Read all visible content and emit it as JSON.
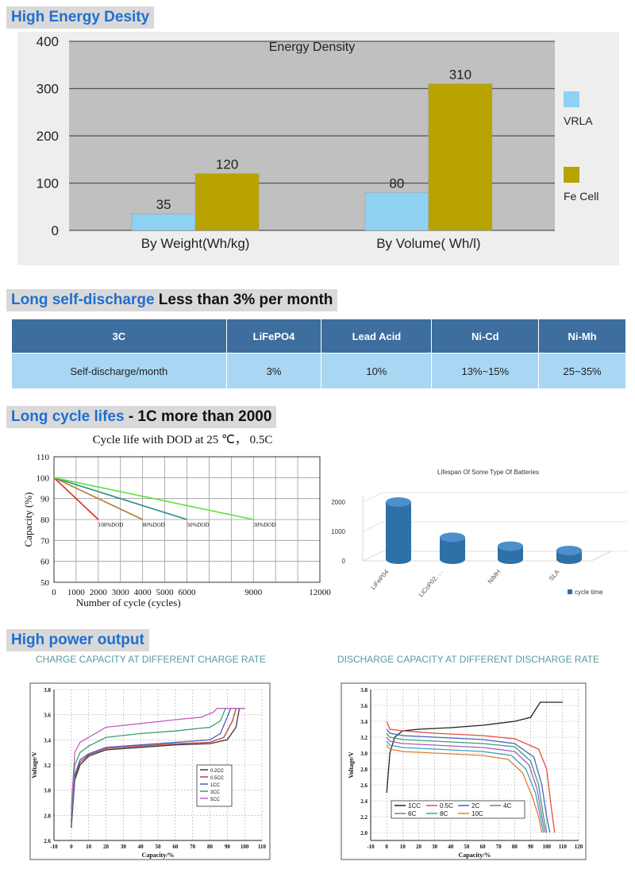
{
  "sections": {
    "energy": {
      "title": "High Energy Desity"
    },
    "self_discharge": {
      "title_colored": "Long self-discharge",
      "title_rest": " Less than 3% per month"
    },
    "cycle": {
      "title_colored": "Long cycle lifes",
      "title_rest": " - 1C more than 2000"
    },
    "power": {
      "title": "High power output"
    }
  },
  "colors": {
    "header_blue": "#1f6fd0",
    "vrla": "#8fd1f3",
    "fe": "#b8a300",
    "table_header": "#3d6e9e",
    "table_row": "#a8d6f3"
  },
  "table": {
    "headers": [
      "3C",
      "LiFePO4",
      "Lead Acid",
      "Ni-Cd",
      "Ni-Mh"
    ],
    "row": [
      "Self-discharge/month",
      "3%",
      "10%",
      "13%~15%",
      "25~35%"
    ]
  },
  "chart_data": [
    {
      "type": "bar",
      "title": "Energy Density",
      "categories": [
        "By Weight(Wh/kg)",
        "By Volume( Wh/l)"
      ],
      "series": [
        {
          "name": "VRLA",
          "values": [
            35,
            80
          ]
        },
        {
          "name": "Fe Cell",
          "values": [
            120,
            310
          ]
        }
      ],
      "ylim": [
        0,
        400
      ],
      "yticks": [
        0,
        100,
        200,
        300,
        400
      ],
      "grid": true,
      "legend": "right"
    },
    {
      "type": "line",
      "title": "Cycle life with  DOD  at 25 ℃， 0.5C",
      "xlabel": "Number of cycle (cycles)",
      "ylabel": "Capacity (%)",
      "xlim": [
        0,
        12000
      ],
      "ylim": [
        50,
        110
      ],
      "xticks": [
        0,
        1000,
        2000,
        3000,
        4000,
        5000,
        6000,
        9000,
        12000
      ],
      "yticks": [
        50,
        60,
        70,
        80,
        90,
        100,
        110
      ],
      "series": [
        {
          "name": "100%DOD",
          "color": "#d92b2b",
          "x": [
            0,
            2000
          ],
          "y": [
            100,
            80
          ]
        },
        {
          "name": "80%DOD",
          "color": "#b07d2a",
          "x": [
            0,
            4000
          ],
          "y": [
            100,
            80
          ]
        },
        {
          "name": "50%DOD",
          "color": "#2a8c8c",
          "x": [
            0,
            6000
          ],
          "y": [
            100,
            80
          ]
        },
        {
          "name": "30%DOD",
          "color": "#5fe03a",
          "x": [
            0,
            9000
          ],
          "y": [
            100,
            80
          ]
        }
      ]
    },
    {
      "type": "bar",
      "title": "Lifespan Of Some Type Of Batteries",
      "categories": [
        "LiFeP04",
        "LiCoP02. . .",
        "NiMH",
        "SLA"
      ],
      "series": [
        {
          "name": "cycle time",
          "values": [
            2000,
            800,
            500,
            350
          ]
        }
      ],
      "ylim": [
        0,
        2000
      ],
      "yticks": [
        0,
        1000,
        2000
      ],
      "legend": "bottom-right"
    },
    {
      "type": "line",
      "title": "CHARGE CAPACITY AT DIFFERENT CHARGE RATE",
      "xlabel": "Capacity/%",
      "ylabel": "Voltage/V",
      "xlim": [
        -10,
        110
      ],
      "ylim": [
        2.6,
        3.8
      ],
      "xticks": [
        -10,
        0,
        10,
        20,
        30,
        40,
        50,
        60,
        70,
        80,
        90,
        100,
        110
      ],
      "yticks": [
        2.6,
        2.8,
        3.0,
        3.2,
        3.4,
        3.6,
        3.8
      ],
      "legend": "bottom-right",
      "series": [
        {
          "name": "0.2CC",
          "color": "#3a3a3a",
          "x": [
            0,
            2,
            5,
            10,
            20,
            40,
            60,
            80,
            90,
            95,
            97,
            100
          ],
          "y": [
            2.7,
            3.08,
            3.2,
            3.27,
            3.32,
            3.34,
            3.36,
            3.37,
            3.4,
            3.5,
            3.65,
            3.65
          ]
        },
        {
          "name": "0.5CC",
          "color": "#c04040",
          "x": [
            0,
            2,
            5,
            10,
            20,
            40,
            60,
            80,
            88,
            93,
            95,
            100
          ],
          "y": [
            2.72,
            3.1,
            3.22,
            3.28,
            3.33,
            3.35,
            3.37,
            3.38,
            3.42,
            3.55,
            3.65,
            3.65
          ]
        },
        {
          "name": "1CC",
          "color": "#4a5fc0",
          "x": [
            0,
            2,
            5,
            10,
            20,
            40,
            60,
            80,
            86,
            90,
            92,
            100
          ],
          "y": [
            2.75,
            3.12,
            3.24,
            3.29,
            3.34,
            3.36,
            3.38,
            3.4,
            3.45,
            3.58,
            3.65,
            3.65
          ]
        },
        {
          "name": "3CC",
          "color": "#3aa06a",
          "x": [
            0,
            2,
            5,
            10,
            20,
            40,
            60,
            80,
            86,
            89,
            100
          ],
          "y": [
            2.8,
            3.2,
            3.3,
            3.35,
            3.42,
            3.45,
            3.47,
            3.5,
            3.55,
            3.65,
            3.65
          ]
        },
        {
          "name": "5CC",
          "color": "#c060c0",
          "x": [
            0,
            2,
            5,
            10,
            20,
            40,
            60,
            75,
            82,
            84,
            100
          ],
          "y": [
            2.85,
            3.3,
            3.38,
            3.42,
            3.5,
            3.53,
            3.56,
            3.58,
            3.62,
            3.65,
            3.65
          ]
        }
      ]
    },
    {
      "type": "line",
      "title": "DISCHARGE CAPACITY AT DIFFERENT DISCHARGE RATE",
      "xlabel": "Capacity/%",
      "ylabel": "Voltage/V",
      "xlim": [
        -10,
        120
      ],
      "ylim": [
        1.9,
        3.8
      ],
      "xticks": [
        -10,
        0,
        10,
        20,
        30,
        40,
        50,
        60,
        70,
        80,
        90,
        100,
        110,
        120
      ],
      "yticks": [
        2.0,
        2.2,
        2.4,
        2.6,
        2.8,
        3.0,
        3.2,
        3.4,
        3.6,
        3.8
      ],
      "legend": "bottom-left",
      "series": [
        {
          "name": "1CC",
          "color": "#222222",
          "x": [
            0,
            2,
            5,
            10,
            20,
            40,
            60,
            80,
            90,
            96,
            110
          ],
          "y": [
            2.5,
            3.0,
            3.2,
            3.28,
            3.3,
            3.32,
            3.35,
            3.4,
            3.45,
            3.64,
            3.64
          ]
        },
        {
          "name": "0.5C",
          "color": "#e05040",
          "x": [
            0,
            2,
            10,
            30,
            60,
            80,
            95,
            100,
            103,
            105
          ],
          "y": [
            3.4,
            3.3,
            3.28,
            3.25,
            3.22,
            3.18,
            3.05,
            2.8,
            2.3,
            2.0
          ]
        },
        {
          "name": "2C",
          "color": "#4a60c0",
          "x": [
            0,
            2,
            10,
            30,
            60,
            80,
            92,
            97,
            100,
            102
          ],
          "y": [
            3.3,
            3.25,
            3.22,
            3.2,
            3.17,
            3.12,
            2.95,
            2.6,
            2.2,
            2.0
          ]
        },
        {
          "name": "4C",
          "color": "#3aa070",
          "x": [
            0,
            2,
            10,
            30,
            60,
            80,
            90,
            95,
            98,
            100
          ],
          "y": [
            3.25,
            3.2,
            3.17,
            3.15,
            3.12,
            3.08,
            2.9,
            2.6,
            2.2,
            2.0
          ]
        },
        {
          "name": "6C",
          "color": "#a060c0",
          "x": [
            0,
            2,
            10,
            30,
            60,
            80,
            89,
            94,
            97,
            99
          ],
          "y": [
            3.2,
            3.15,
            3.12,
            3.1,
            3.07,
            3.02,
            2.85,
            2.55,
            2.2,
            2.0
          ]
        },
        {
          "name": "8C",
          "color": "#40a0c0",
          "x": [
            0,
            2,
            10,
            30,
            60,
            78,
            87,
            93,
            96,
            98
          ],
          "y": [
            3.15,
            3.1,
            3.07,
            3.05,
            3.02,
            2.97,
            2.8,
            2.5,
            2.2,
            2.0
          ]
        },
        {
          "name": "10C",
          "color": "#e08030",
          "x": [
            0,
            2,
            10,
            30,
            60,
            76,
            85,
            91,
            95,
            97
          ],
          "y": [
            3.1,
            3.05,
            3.02,
            3.0,
            2.97,
            2.92,
            2.75,
            2.45,
            2.2,
            2.0
          ]
        }
      ]
    }
  ]
}
